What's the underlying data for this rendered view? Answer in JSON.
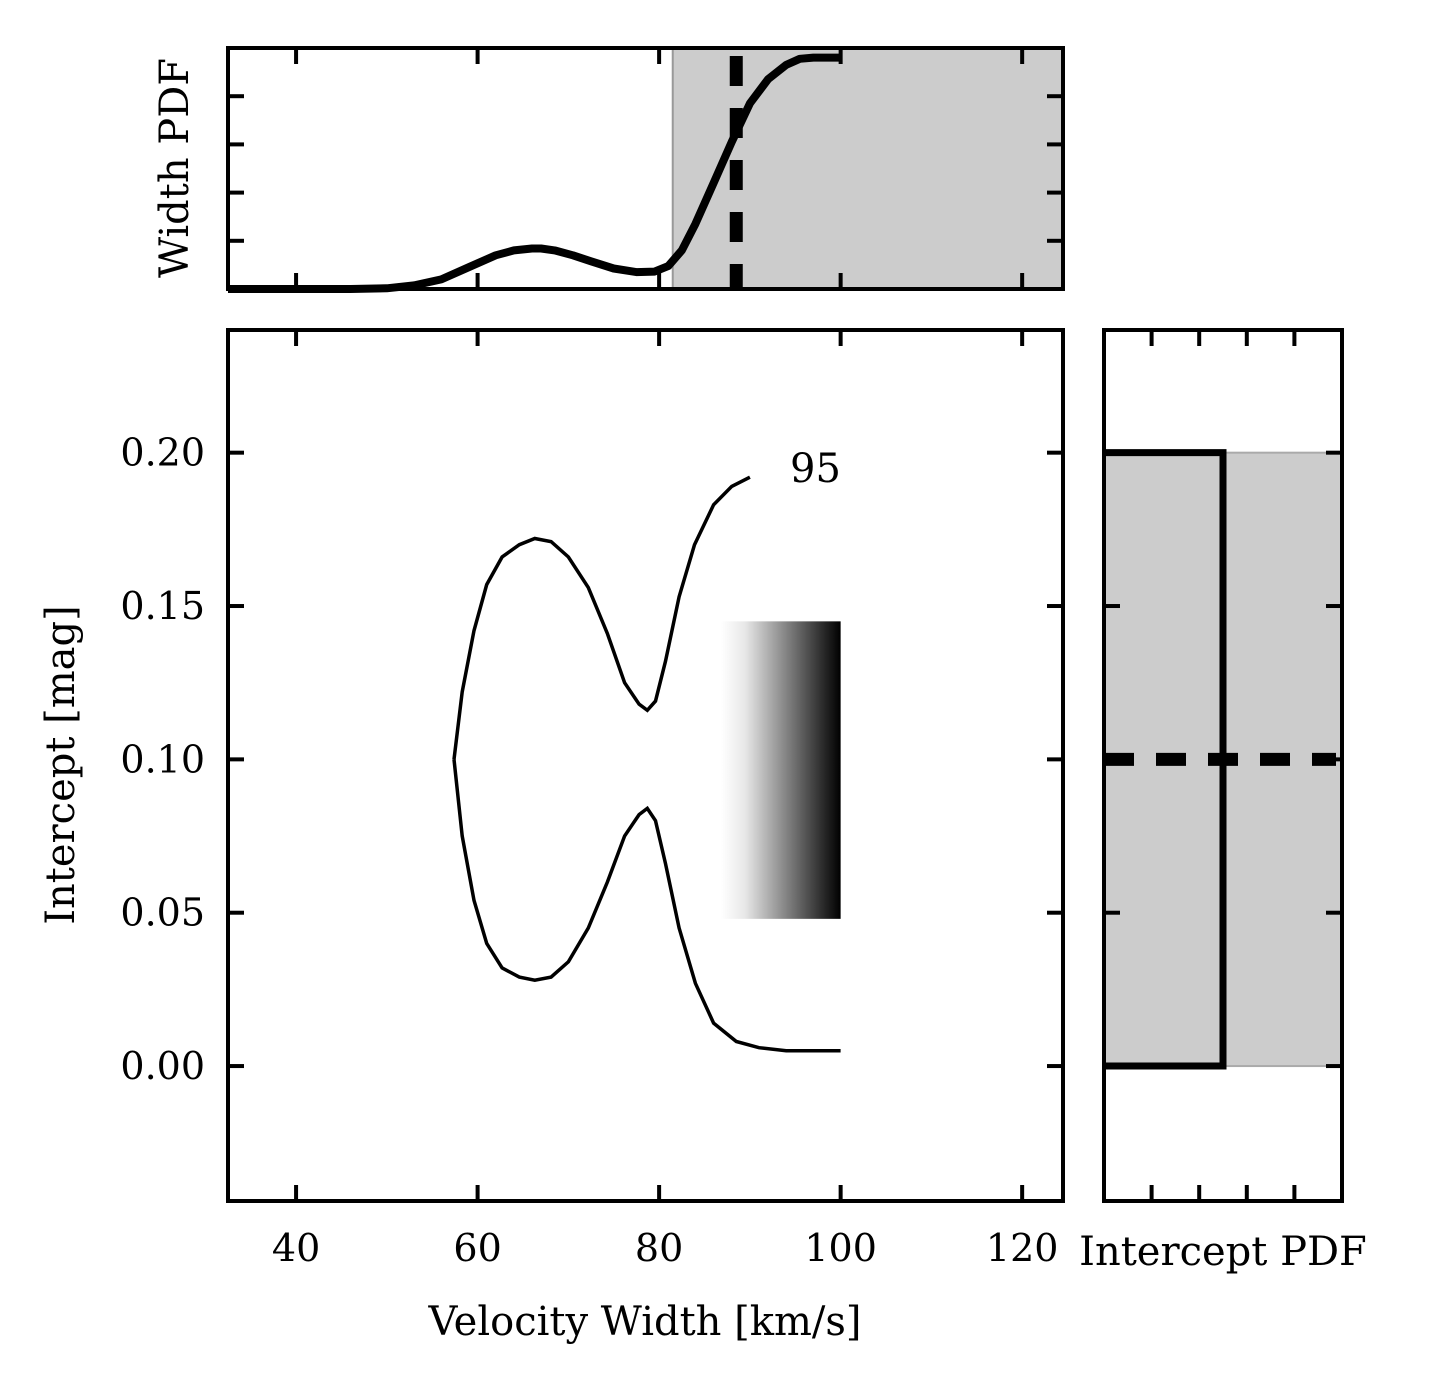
{
  "chart_data": [
    {
      "panel": "main",
      "type": "contour",
      "xlabel": "Velocity Width [km/s]",
      "ylabel": "Intercept [mag]",
      "xlim": [
        32.5,
        124.5
      ],
      "ylim": [
        -0.044,
        0.24
      ],
      "xticks": [
        40,
        60,
        80,
        100,
        120
      ],
      "xtick_labels": [
        "40",
        "60",
        "80",
        "100",
        "120"
      ],
      "yticks": [
        0.0,
        0.05,
        0.1,
        0.15,
        0.2
      ],
      "ytick_labels": [
        "0.00",
        "0.05",
        "0.10",
        "0.15",
        "0.20"
      ],
      "contour_label": "95",
      "contour_upper": {
        "x": [
          57.4,
          58.3,
          59.6,
          61.0,
          62.7,
          64.6,
          66.3,
          68.1,
          70.0,
          72.2,
          74.3,
          76.2,
          77.8,
          78.7,
          79.6,
          80.7,
          82.2,
          83.9,
          86.0,
          88.0,
          90.0
        ],
        "y": [
          0.1,
          0.122,
          0.142,
          0.157,
          0.166,
          0.17,
          0.172,
          0.171,
          0.166,
          0.156,
          0.141,
          0.125,
          0.118,
          0.116,
          0.119,
          0.132,
          0.153,
          0.17,
          0.183,
          0.189,
          0.192
        ]
      },
      "contour_lower": {
        "x": [
          57.4,
          58.3,
          59.6,
          61.0,
          62.7,
          64.6,
          66.3,
          68.1,
          70.0,
          72.2,
          74.3,
          76.2,
          77.8,
          78.7,
          79.6,
          80.7,
          82.2,
          84.0,
          86.0,
          88.5,
          91.0,
          94.0,
          97.0,
          100.0
        ],
        "y": [
          0.1,
          0.075,
          0.054,
          0.04,
          0.032,
          0.029,
          0.028,
          0.029,
          0.034,
          0.045,
          0.06,
          0.075,
          0.082,
          0.084,
          0.08,
          0.066,
          0.045,
          0.027,
          0.014,
          0.008,
          0.006,
          0.005,
          0.005,
          0.005
        ]
      },
      "gradient_region": {
        "x": [
          86.8,
          100.0
        ],
        "y": [
          0.048,
          0.145
        ],
        "colors": [
          "#ffffff",
          "#000000"
        ]
      }
    },
    {
      "panel": "top",
      "type": "line",
      "ylabel": "Width PDF",
      "xlim": [
        32.5,
        124.5
      ],
      "ylim": [
        0,
        1
      ],
      "x": [
        32.5,
        40,
        46,
        50,
        53,
        56,
        59,
        62,
        64,
        66,
        67,
        68.5,
        70.5,
        72.5,
        75,
        77.5,
        79.5,
        81,
        82.5,
        84,
        86,
        88,
        90,
        92,
        94,
        95.5,
        97,
        98,
        100
      ],
      "y": [
        0.0,
        0.0,
        0.0,
        0.003,
        0.015,
        0.04,
        0.09,
        0.14,
        0.16,
        0.168,
        0.168,
        0.16,
        0.14,
        0.115,
        0.085,
        0.07,
        0.072,
        0.095,
        0.16,
        0.27,
        0.44,
        0.61,
        0.77,
        0.87,
        0.93,
        0.955,
        0.96,
        0.96,
        0.96
      ],
      "shaded_region_x": [
        81.5,
        124.5
      ],
      "vline_x": 88.5,
      "shade_color": "#cccccc"
    },
    {
      "panel": "right",
      "type": "step",
      "xlabel": "Intercept PDF",
      "ylim": [
        -0.044,
        0.24
      ],
      "step_range_y": [
        0.0,
        0.2
      ],
      "step_level": 0.5,
      "shaded_region_y": [
        0.0,
        0.2
      ],
      "hline_y": 0.1,
      "shade_color": "#cccccc"
    }
  ]
}
